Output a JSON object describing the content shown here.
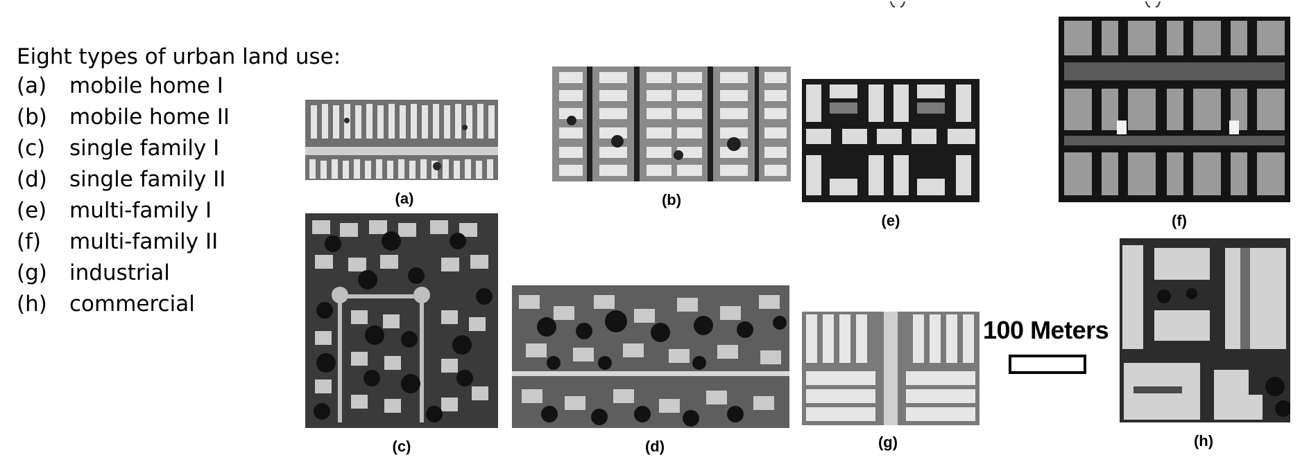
{
  "legend": {
    "title": "Eight types of urban land use:",
    "items": [
      {
        "code": "(a)",
        "label": "mobile home I"
      },
      {
        "code": "(b)",
        "label": "mobile home II"
      },
      {
        "code": "(c)",
        "label": "single family I"
      },
      {
        "code": "(d)",
        "label": "single family II"
      },
      {
        "code": "(e)",
        "label": "multi-family I"
      },
      {
        "code": "(f)",
        "label": "multi-family II"
      },
      {
        "code": "(g)",
        "label": "industrial"
      },
      {
        "code": "(h)",
        "label": "commercial"
      }
    ]
  },
  "panels": {
    "a": {
      "caption": "(a)"
    },
    "b": {
      "caption": "(b)"
    },
    "c": {
      "caption": "(c)"
    },
    "d": {
      "caption": "(d)"
    },
    "e": {
      "caption": "(e)"
    },
    "f": {
      "caption": "(f)"
    },
    "g": {
      "caption": "(g)"
    },
    "h": {
      "caption": "(h)"
    }
  },
  "scale": {
    "label": "100 Meters"
  }
}
